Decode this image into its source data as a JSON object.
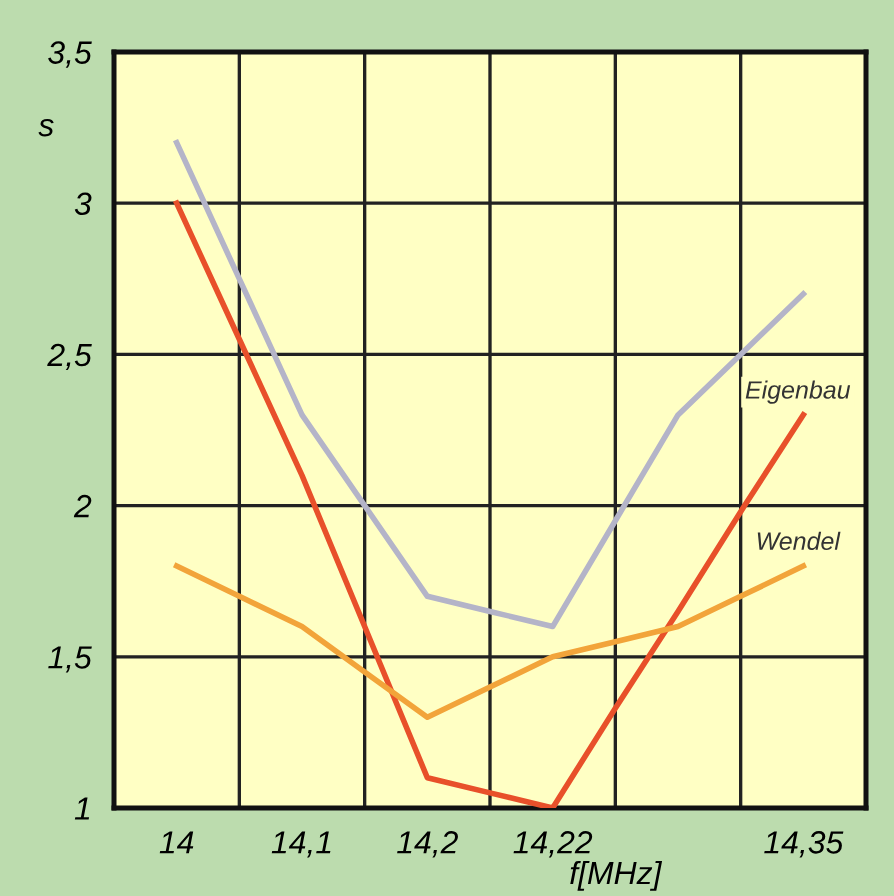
{
  "chart_data": {
    "type": "line",
    "ylabel": "s",
    "xlabel": "f[MHz]",
    "ylim": [
      1,
      3.5
    ],
    "yticks": [
      {
        "value": 1,
        "label": "1"
      },
      {
        "value": 1.5,
        "label": "1,5"
      },
      {
        "value": 2,
        "label": "2"
      },
      {
        "value": 2.5,
        "label": "2,5"
      },
      {
        "value": 3,
        "label": "3"
      },
      {
        "value": 3.5,
        "label": "3,5"
      }
    ],
    "categories": [
      "14",
      null,
      "14,1",
      null,
      "14,2",
      null,
      "14,22",
      null,
      null,
      null,
      "14,35"
    ],
    "grid": true,
    "marker": "none",
    "line_style": "solid",
    "series": [
      {
        "color": "#b4b4c8",
        "values": [
          3.2,
          2.75,
          2.3,
          2.0,
          1.7,
          1.65,
          1.6,
          1.95,
          2.3,
          2.5,
          2.7
        ]
      },
      {
        "name": "Eigenbau",
        "color": "#e8502a",
        "values": [
          3.0,
          2.55,
          2.1,
          1.6,
          1.1,
          1.05,
          1.0,
          1.33,
          1.65,
          1.98,
          2.3
        ]
      },
      {
        "name": "Wendel",
        "color": "#f2a43a",
        "values": [
          1.8,
          1.7,
          1.6,
          1.45,
          1.3,
          1.4,
          1.5,
          1.55,
          1.6,
          1.7,
          1.8
        ]
      }
    ]
  }
}
